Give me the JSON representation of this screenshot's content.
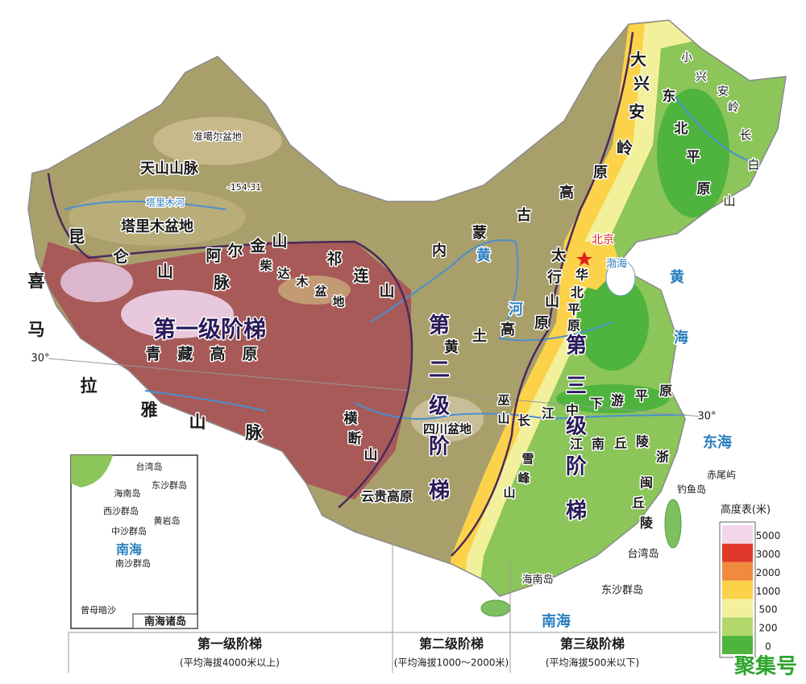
{
  "map_labels": [
    "准噶尔盆地",
    "天山山脉",
    "-154.31",
    "塔里木河",
    "塔里木盆地",
    "昆仑山脉",
    "阿尔金山",
    "祁连山",
    "柴达木盆地",
    "喜马拉雅山脉",
    "第一级阶梯",
    "青藏高原",
    "内蒙古高原",
    "黄河",
    "黄土高原",
    "第二级阶梯",
    "四川盆地",
    "巫山",
    "云贵高原",
    "横断山",
    "大兴安岭",
    "太行山",
    "华北平原",
    "北京",
    "小兴安岭",
    "东北平原",
    "长白山",
    "第三级阶梯",
    "长江中下游平原",
    "江南丘陵",
    "浙闽丘陵",
    "雪峰山",
    "渤海",
    "黄海",
    "东海",
    "南海",
    "赤尾屿",
    "钓鱼岛",
    "台湾岛",
    "海南岛",
    "东沙群岛",
    "30°",
    "30°"
  ],
  "inset": {
    "title": "南海诸岛",
    "labels": [
      "台湾岛",
      "东沙群岛",
      "海南岛",
      "西沙群岛",
      "黄岩岛",
      "中沙群岛",
      "南海",
      "南沙群岛",
      "曾母暗沙"
    ]
  },
  "steps": [
    {
      "name": "第一级阶梯",
      "note": "(平均海拔4000米以上)"
    },
    {
      "name": "第二级阶梯",
      "note": "(平均海拔1000～2000米)"
    },
    {
      "name": "第三级阶梯",
      "note": "(平均海拔500米以下)"
    }
  ],
  "legend": {
    "title": "高度表(米)",
    "items": [
      {
        "value": 5000,
        "color": "#f2d6ea"
      },
      {
        "value": 3000,
        "color": "#e0382a"
      },
      {
        "value": 2000,
        "color": "#f08a3c"
      },
      {
        "value": 1000,
        "color": "#fbd24a"
      },
      {
        "value": 500,
        "color": "#f3f09c"
      },
      {
        "value": 200,
        "color": "#b2d86c"
      },
      {
        "value": 0,
        "color": "#4fb43d"
      }
    ]
  },
  "watermark": "聚集号"
}
